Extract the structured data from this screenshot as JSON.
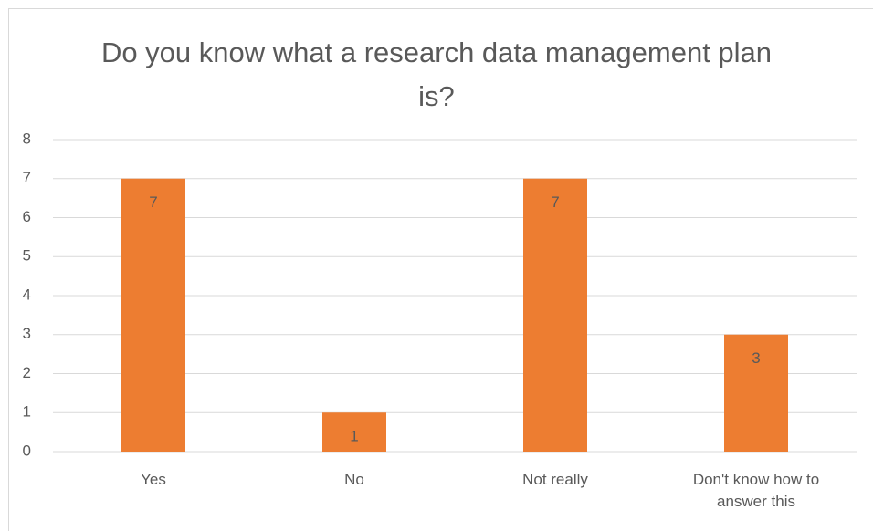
{
  "chart_data": {
    "type": "bar",
    "title": "Do you know what a research data management plan is?",
    "categories": [
      "Yes",
      "No",
      "Not really",
      "Don't know how to answer this"
    ],
    "values": [
      7,
      1,
      7,
      3
    ],
    "color": "#ed7d31",
    "ylim": [
      0,
      8
    ],
    "yticks": [
      0,
      1,
      2,
      3,
      4,
      5,
      6,
      7,
      8
    ],
    "grid": true,
    "data_labels": true
  }
}
